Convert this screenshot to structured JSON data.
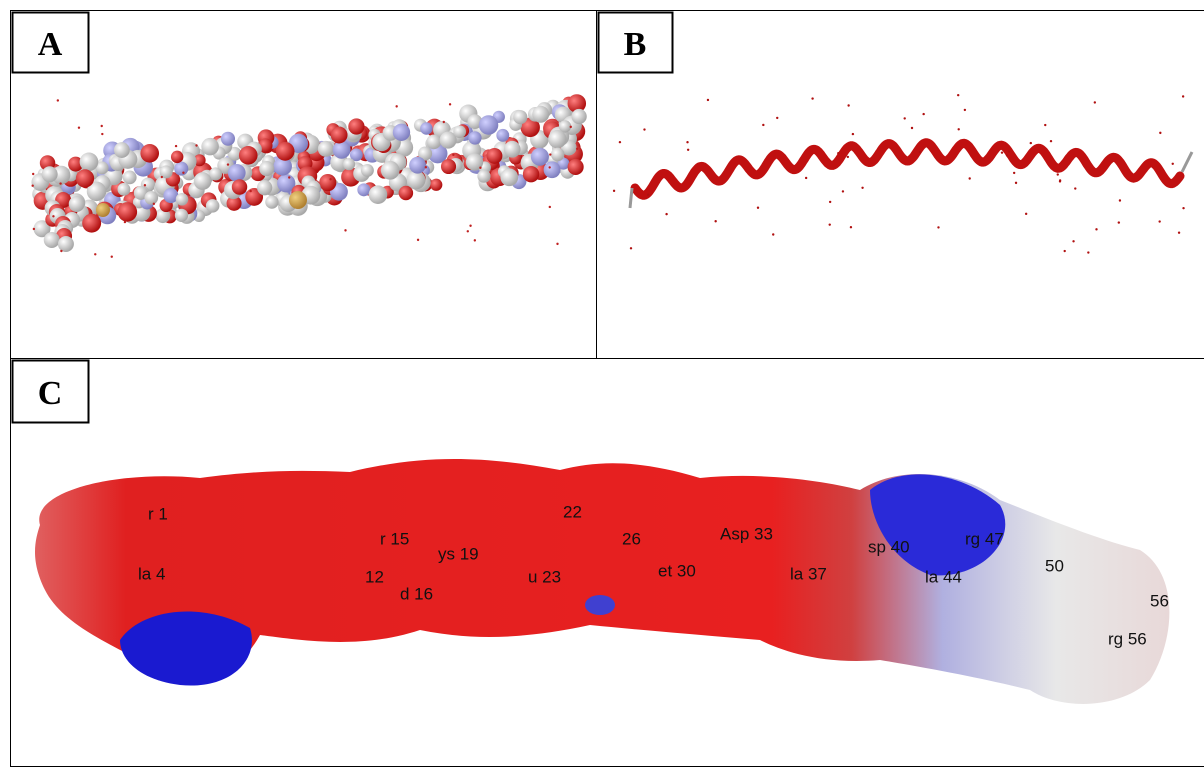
{
  "panels": [
    {
      "label": "A"
    },
    {
      "label": "B"
    },
    {
      "label": "C",
      "residue_labels": [
        "r 1",
        "la 4",
        "12",
        "d 16",
        "r 15",
        "ys 19",
        "22",
        "u 23",
        "26",
        "et 30",
        "Asp 33",
        "la 37",
        "sp 40",
        "la 44",
        "rg 47",
        "50",
        "56",
        "rg 56"
      ]
    }
  ]
}
